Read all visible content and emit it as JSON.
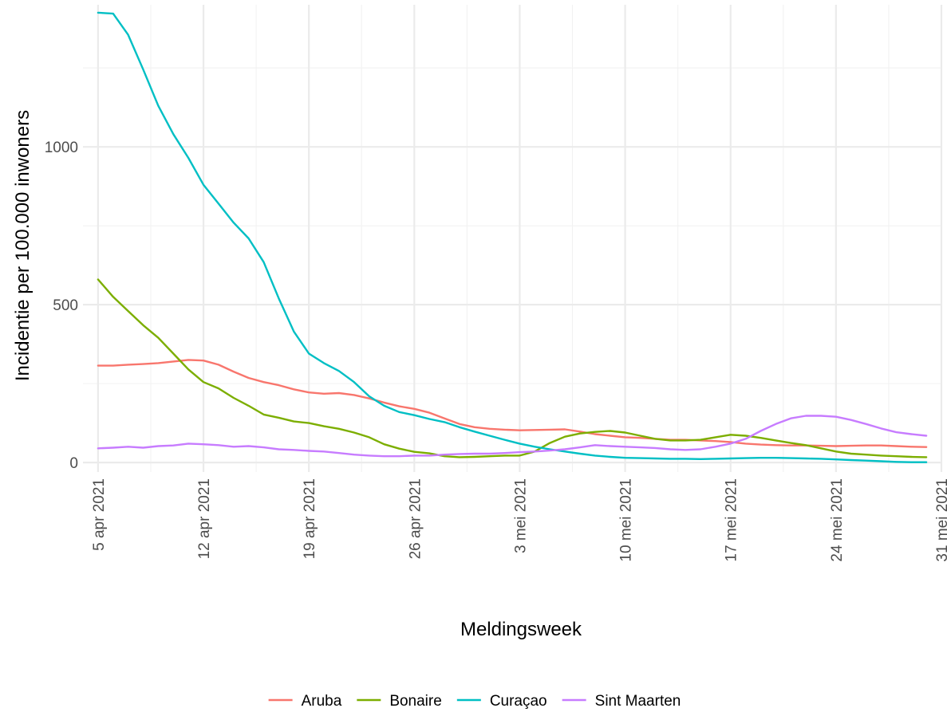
{
  "chart_data": {
    "type": "line",
    "xlabel": "Meldingsweek",
    "ylabel": "Incidentie per 100.000 inwoners",
    "x_ticks": [
      "5 apr 2021",
      "12 apr 2021",
      "19 apr 2021",
      "26 apr 2021",
      "3 mei 2021",
      "10 mei 2021",
      "17 mei 2021",
      "24 mei 2021",
      "31 mei 2021"
    ],
    "x_tick_dates": [
      "2021-04-05",
      "2021-04-12",
      "2021-04-19",
      "2021-04-26",
      "2021-05-03",
      "2021-05-10",
      "2021-05-17",
      "2021-05-24",
      "2021-05-31"
    ],
    "y_ticks": [
      0,
      500,
      1000
    ],
    "ylim": [
      -30,
      1450
    ],
    "xlim": [
      "2021-04-04",
      "2021-05-31"
    ],
    "grid": true,
    "legend_position": "bottom",
    "dates": [
      "2021-04-05",
      "2021-04-06",
      "2021-04-07",
      "2021-04-08",
      "2021-04-09",
      "2021-04-10",
      "2021-04-11",
      "2021-04-12",
      "2021-04-13",
      "2021-04-14",
      "2021-04-15",
      "2021-04-16",
      "2021-04-17",
      "2021-04-18",
      "2021-04-19",
      "2021-04-20",
      "2021-04-21",
      "2021-04-22",
      "2021-04-23",
      "2021-04-24",
      "2021-04-25",
      "2021-04-26",
      "2021-04-27",
      "2021-04-28",
      "2021-04-29",
      "2021-04-30",
      "2021-05-01",
      "2021-05-02",
      "2021-05-03",
      "2021-05-04",
      "2021-05-05",
      "2021-05-06",
      "2021-05-07",
      "2021-05-08",
      "2021-05-09",
      "2021-05-10",
      "2021-05-11",
      "2021-05-12",
      "2021-05-13",
      "2021-05-14",
      "2021-05-15",
      "2021-05-16",
      "2021-05-17",
      "2021-05-18",
      "2021-05-19",
      "2021-05-20",
      "2021-05-21",
      "2021-05-22",
      "2021-05-23",
      "2021-05-24",
      "2021-05-25",
      "2021-05-26",
      "2021-05-27",
      "2021-05-28",
      "2021-05-29",
      "2021-05-30"
    ],
    "series": [
      {
        "name": "Aruba",
        "color": "#F8766D",
        "values": [
          307,
          307,
          310,
          312,
          315,
          320,
          325,
          323,
          310,
          288,
          268,
          255,
          245,
          232,
          222,
          218,
          220,
          214,
          203,
          190,
          178,
          170,
          158,
          140,
          122,
          112,
          107,
          104,
          102,
          103,
          104,
          105,
          98,
          90,
          85,
          80,
          78,
          75,
          72,
          72,
          70,
          68,
          65,
          60,
          57,
          55,
          54,
          54,
          53,
          52,
          53,
          54,
          54,
          52,
          50,
          49
        ]
      },
      {
        "name": "Bonaire",
        "color": "#7CAE00",
        "values": [
          580,
          525,
          480,
          435,
          395,
          345,
          295,
          255,
          235,
          205,
          180,
          152,
          142,
          130,
          125,
          115,
          107,
          95,
          80,
          58,
          44,
          34,
          29,
          20,
          17,
          18,
          20,
          22,
          22,
          35,
          62,
          82,
          92,
          97,
          100,
          95,
          85,
          75,
          70,
          70,
          72,
          80,
          88,
          85,
          78,
          70,
          62,
          55,
          45,
          35,
          28,
          25,
          22,
          20,
          18,
          17
        ]
      },
      {
        "name": "Curaçao",
        "color": "#00BFC4",
        "values": [
          1425,
          1422,
          1355,
          1245,
          1130,
          1040,
          965,
          880,
          820,
          760,
          710,
          635,
          520,
          415,
          345,
          315,
          290,
          255,
          210,
          180,
          160,
          150,
          138,
          128,
          112,
          98,
          85,
          72,
          60,
          50,
          42,
          35,
          28,
          22,
          18,
          15,
          14,
          13,
          12,
          12,
          11,
          12,
          13,
          14,
          15,
          15,
          14,
          13,
          12,
          10,
          8,
          6,
          4,
          2,
          1,
          1
        ]
      },
      {
        "name": "Sint Maarten",
        "color": "#C77CFF",
        "values": [
          45,
          47,
          50,
          47,
          52,
          54,
          60,
          58,
          55,
          50,
          52,
          48,
          42,
          40,
          37,
          35,
          30,
          25,
          22,
          20,
          20,
          22,
          22,
          25,
          27,
          28,
          28,
          30,
          33,
          35,
          38,
          42,
          48,
          55,
          52,
          50,
          48,
          46,
          42,
          40,
          42,
          50,
          60,
          75,
          100,
          122,
          140,
          148,
          148,
          145,
          135,
          122,
          108,
          96,
          90,
          85
        ]
      }
    ]
  }
}
